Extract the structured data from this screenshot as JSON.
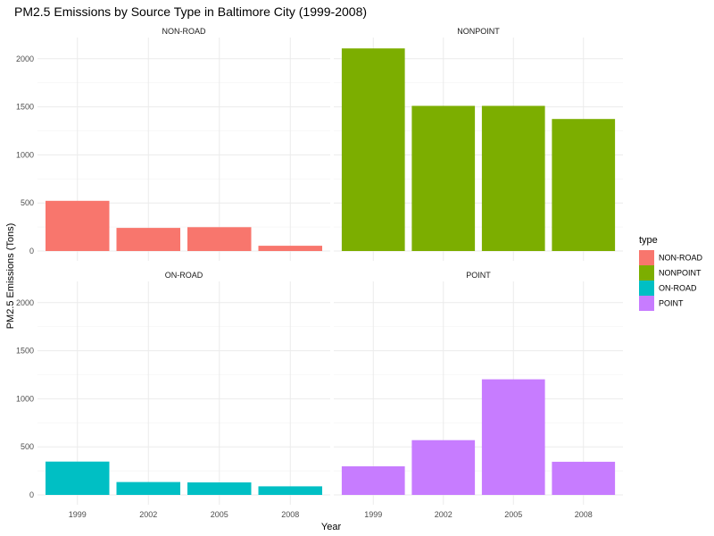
{
  "chart_data": {
    "type": "bar",
    "title": "PM2.5 Emissions by Source Type in Baltimore City (1999-2008)",
    "xlabel": "Year",
    "ylabel": "PM2.5 Emissions (Tons)",
    "categories": [
      "1999",
      "2002",
      "2005",
      "2008"
    ],
    "ylim": [
      0,
      2200
    ],
    "yticks": [
      0,
      500,
      1000,
      1500,
      2000
    ],
    "grid": true,
    "legend": {
      "title": "type",
      "position": "right",
      "entries": [
        "NON-ROAD",
        "NONPOINT",
        "ON-ROAD",
        "POINT"
      ]
    },
    "facets": [
      {
        "name": "NON-ROAD",
        "color": "#F8766D",
        "values": [
          522,
          241,
          248,
          55
        ]
      },
      {
        "name": "NONPOINT",
        "color": "#7CAE00",
        "values": [
          2107,
          1510,
          1510,
          1373
        ]
      },
      {
        "name": "ON-ROAD",
        "color": "#00BFC4",
        "values": [
          347,
          134,
          130,
          89
        ]
      },
      {
        "name": "POINT",
        "color": "#C77CFF",
        "values": [
          297,
          570,
          1202,
          345
        ]
      }
    ]
  }
}
